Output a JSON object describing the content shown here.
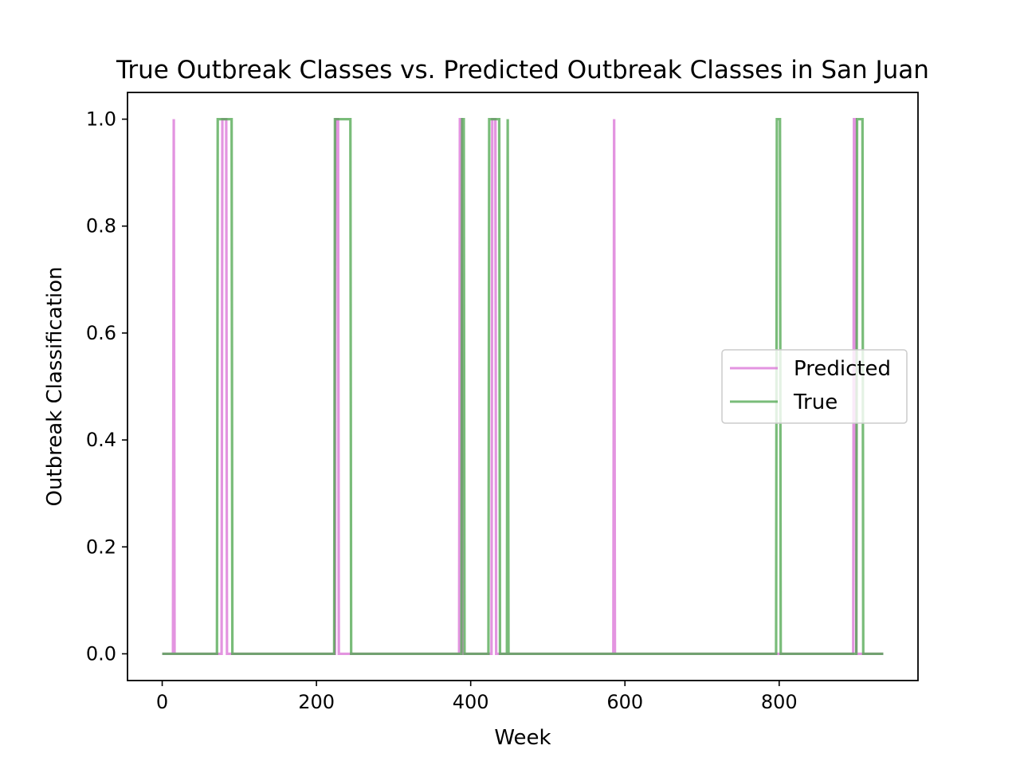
{
  "chart_data": {
    "type": "line",
    "title": "True Outbreak Classes vs. Predicted Outbreak Classes in San Juan",
    "xlabel": "Week",
    "ylabel": "Outbreak Classification",
    "xlim": [
      -45,
      980
    ],
    "ylim": [
      -0.05,
      1.05
    ],
    "xticks": [
      0,
      200,
      400,
      600,
      800
    ],
    "yticks": [
      0.0,
      0.2,
      0.4,
      0.6,
      0.8,
      1.0
    ],
    "grid": false,
    "legend_position": "center-right",
    "x": {
      "start": 0,
      "end": 935,
      "step": 1
    },
    "series": [
      {
        "name": "Predicted",
        "color": "#da70d6",
        "one_intervals": [
          [
            15,
            15
          ],
          [
            78,
            83
          ],
          [
            225,
            228
          ],
          [
            386,
            388
          ],
          [
            428,
            432
          ],
          [
            586,
            586
          ],
          [
            897,
            899
          ]
        ]
      },
      {
        "name": "True",
        "color": "#4ca64c",
        "one_intervals": [
          [
            72,
            90
          ],
          [
            224,
            244
          ],
          [
            389,
            391
          ],
          [
            424,
            437
          ],
          [
            448,
            448
          ],
          [
            797,
            801
          ],
          [
            901,
            908
          ]
        ]
      }
    ]
  }
}
